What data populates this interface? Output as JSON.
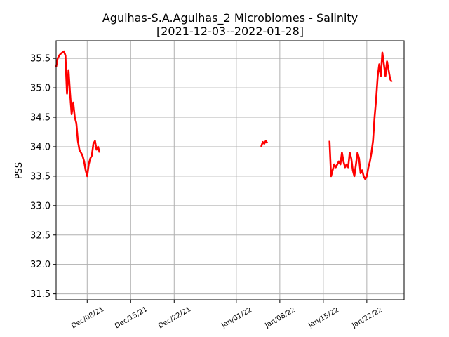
{
  "chart_data": {
    "type": "line",
    "title_line1": "Agulhas-S.A.Agulhas_2 Microbiomes - Salinity",
    "title_line2": "[2021-12-03--2022-01-28]",
    "xlabel": "",
    "ylabel": "PSS",
    "xlim": [
      "2021-12-03",
      "2022-01-28"
    ],
    "ylim": [
      31.4,
      35.8
    ],
    "grid": true,
    "y_ticks": [
      31.5,
      32.0,
      32.5,
      33.0,
      33.5,
      34.0,
      34.5,
      35.0,
      35.5
    ],
    "y_tick_labels": [
      "31.5",
      "32.0",
      "32.5",
      "33.0",
      "33.5",
      "34.0",
      "34.5",
      "35.0",
      "35.5"
    ],
    "x_ticks": [
      "2021-12-08",
      "2021-12-15",
      "2021-12-22",
      "2022-01-01",
      "2022-01-08",
      "2022-01-15",
      "2022-01-22"
    ],
    "x_tick_labels": [
      "Dec/08/21",
      "Dec/15/21",
      "Dec/22/21",
      "Jan/01/22",
      "Jan/08/22",
      "Jan/15/22",
      "Jan/22/22"
    ],
    "series": [
      {
        "color": "#ff0000",
        "segments": [
          [
            [
              "2021-12-03T00:00",
              35.35
            ],
            [
              "2021-12-03T06:00",
              35.5
            ],
            [
              "2021-12-03T12:00",
              35.55
            ],
            [
              "2021-12-03T18:00",
              35.58
            ],
            [
              "2021-12-04T00:00",
              35.6
            ],
            [
              "2021-12-04T06:00",
              35.62
            ],
            [
              "2021-12-04T12:00",
              35.55
            ],
            [
              "2021-12-04T15:00",
              35.2
            ],
            [
              "2021-12-04T18:00",
              34.9
            ],
            [
              "2021-12-05T00:00",
              35.3
            ],
            [
              "2021-12-05T06:00",
              34.9
            ],
            [
              "2021-12-05T12:00",
              34.55
            ],
            [
              "2021-12-05T18:00",
              34.75
            ],
            [
              "2021-12-06T00:00",
              34.5
            ],
            [
              "2021-12-06T06:00",
              34.4
            ],
            [
              "2021-12-06T12:00",
              34.1
            ],
            [
              "2021-12-06T18:00",
              33.95
            ],
            [
              "2021-12-07T00:00",
              33.9
            ],
            [
              "2021-12-07T06:00",
              33.85
            ],
            [
              "2021-12-07T12:00",
              33.75
            ],
            [
              "2021-12-07T18:00",
              33.6
            ],
            [
              "2021-12-08T00:00",
              33.5
            ],
            [
              "2021-12-08T06:00",
              33.7
            ],
            [
              "2021-12-08T12:00",
              33.8
            ],
            [
              "2021-12-08T18:00",
              33.85
            ],
            [
              "2021-12-09T00:00",
              34.05
            ],
            [
              "2021-12-09T06:00",
              34.1
            ],
            [
              "2021-12-09T12:00",
              33.95
            ],
            [
              "2021-12-09T18:00",
              34.0
            ],
            [
              "2021-12-10T00:00",
              33.9
            ]
          ],
          [
            [
              "2022-01-05T00:00",
              34.0
            ],
            [
              "2022-01-05T06:00",
              34.08
            ],
            [
              "2022-01-05T12:00",
              34.05
            ],
            [
              "2022-01-05T18:00",
              34.1
            ],
            [
              "2022-01-06T00:00",
              34.06
            ]
          ],
          [
            [
              "2022-01-16T00:00",
              34.1
            ],
            [
              "2022-01-16T06:00",
              33.5
            ],
            [
              "2022-01-16T12:00",
              33.6
            ],
            [
              "2022-01-16T18:00",
              33.7
            ],
            [
              "2022-01-17T00:00",
              33.65
            ],
            [
              "2022-01-17T06:00",
              33.7
            ],
            [
              "2022-01-17T12:00",
              33.75
            ],
            [
              "2022-01-17T18:00",
              33.7
            ],
            [
              "2022-01-18T00:00",
              33.9
            ],
            [
              "2022-01-18T06:00",
              33.75
            ],
            [
              "2022-01-18T12:00",
              33.65
            ],
            [
              "2022-01-18T18:00",
              33.7
            ],
            [
              "2022-01-19T00:00",
              33.65
            ],
            [
              "2022-01-19T06:00",
              33.9
            ],
            [
              "2022-01-19T12:00",
              33.8
            ],
            [
              "2022-01-19T18:00",
              33.6
            ],
            [
              "2022-01-20T00:00",
              33.5
            ],
            [
              "2022-01-20T06:00",
              33.7
            ],
            [
              "2022-01-20T12:00",
              33.9
            ],
            [
              "2022-01-20T18:00",
              33.8
            ],
            [
              "2022-01-21T00:00",
              33.55
            ],
            [
              "2022-01-21T06:00",
              33.6
            ],
            [
              "2022-01-21T12:00",
              33.5
            ],
            [
              "2022-01-21T18:00",
              33.45
            ],
            [
              "2022-01-22T00:00",
              33.5
            ],
            [
              "2022-01-22T06:00",
              33.65
            ],
            [
              "2022-01-22T12:00",
              33.75
            ],
            [
              "2022-01-22T18:00",
              33.9
            ],
            [
              "2022-01-23T00:00",
              34.1
            ],
            [
              "2022-01-23T06:00",
              34.5
            ],
            [
              "2022-01-23T12:00",
              34.8
            ],
            [
              "2022-01-23T18:00",
              35.2
            ],
            [
              "2022-01-24T00:00",
              35.4
            ],
            [
              "2022-01-24T06:00",
              35.2
            ],
            [
              "2022-01-24T12:00",
              35.6
            ],
            [
              "2022-01-24T18:00",
              35.4
            ],
            [
              "2022-01-25T00:00",
              35.2
            ],
            [
              "2022-01-25T06:00",
              35.45
            ],
            [
              "2022-01-25T12:00",
              35.3
            ],
            [
              "2022-01-25T18:00",
              35.15
            ],
            [
              "2022-01-26T00:00",
              35.1
            ]
          ]
        ]
      }
    ]
  }
}
